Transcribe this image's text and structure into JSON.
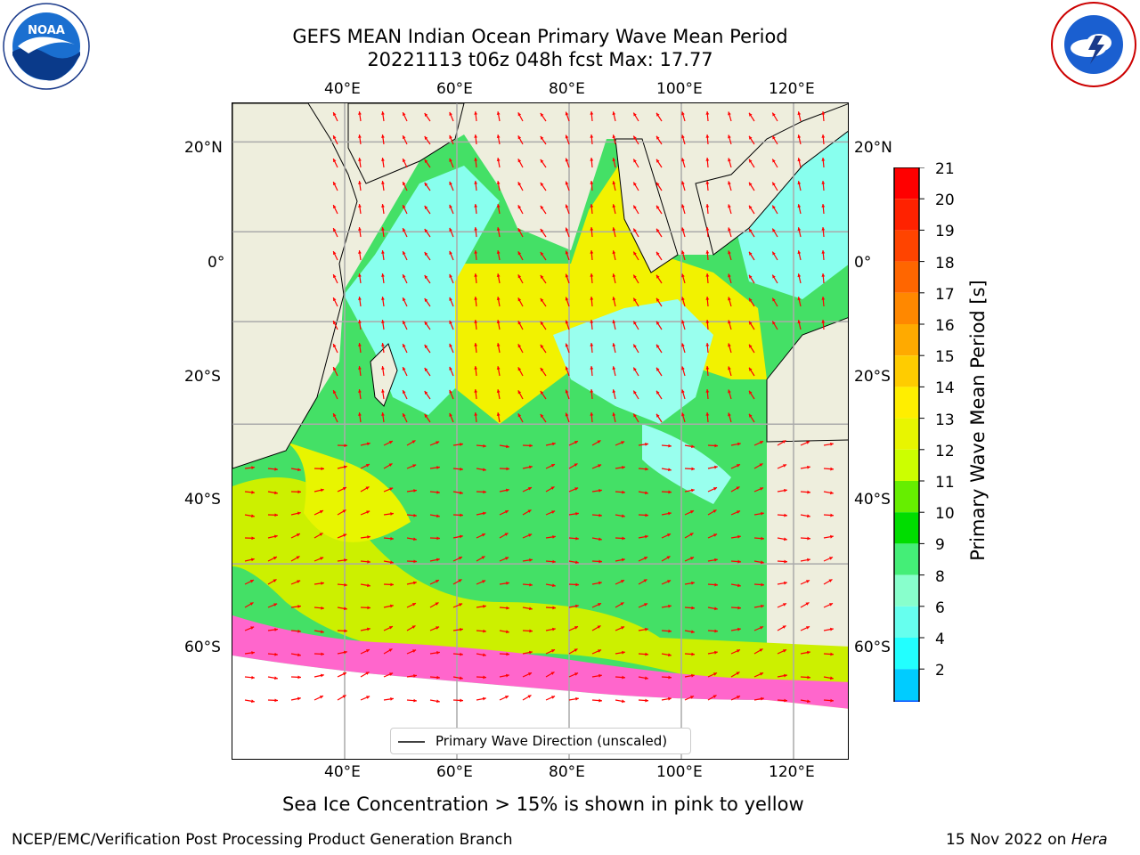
{
  "title": {
    "line1": "GEFS MEAN Indian Ocean Primary Wave Mean Period",
    "line2": "20221113 t06z 048h fcst   Max: 17.77"
  },
  "logos": {
    "left": {
      "name": "noaa-logo",
      "text": "NOAA",
      "ring_text": "NATIONAL OCEANIC AND ATMOSPHERIC ADMINISTRATION · U.S. DEPARTMENT OF COMMERCE"
    },
    "right": {
      "name": "national-weather-service-logo",
      "ring_text": "NATIONAL WEATHER SERVICE"
    }
  },
  "axes": {
    "lon_labels_top": [
      "40°E",
      "60°E",
      "80°E",
      "100°E",
      "120°E"
    ],
    "lon_labels_bottom": [
      "40°E",
      "60°E",
      "80°E",
      "100°E",
      "120°E"
    ],
    "lat_labels_left": [
      "20°N",
      "0°",
      "20°S",
      "40°S",
      "60°S"
    ],
    "lat_labels_right": [
      "20°N",
      "0°",
      "20°S",
      "40°S",
      "60°S"
    ],
    "lon_values": [
      40,
      60,
      80,
      100,
      120
    ],
    "lat_values": [
      20,
      0,
      -20,
      -40,
      -60
    ],
    "lon_range": [
      20,
      130
    ],
    "lat_range": [
      -76,
      28
    ],
    "grid": true
  },
  "colorbar": {
    "label": "Primary Wave Mean Period [s]",
    "ticks": [
      "21",
      "20",
      "19",
      "18",
      "17",
      "16",
      "15",
      "14",
      "13",
      "12",
      "11",
      "10",
      "9",
      "8",
      "6",
      "4",
      "2"
    ],
    "colors": [
      "#ff0000",
      "#ff2200",
      "#ff4400",
      "#ff6600",
      "#ff8800",
      "#ffaa00",
      "#ffcc00",
      "#ffee00",
      "#e8f500",
      "#ccff00",
      "#66ee00",
      "#00dd00",
      "#44ee77",
      "#88ffcc",
      "#66ffee",
      "#22ffff",
      "#00ccff",
      "#0055ff"
    ],
    "extend_color": "#0000ee"
  },
  "legend": {
    "label": "Primary Wave Direction (unscaled)"
  },
  "note": "Sea Ice Concentration > 15% is shown in pink to yellow",
  "footer": {
    "left": "NCEP/EMC/Verification Post Processing Product Generation Branch",
    "right_date": "15 Nov 2022 on ",
    "right_host": "Hera"
  },
  "colors": {
    "land": "#eeeedd",
    "arrow": "#ff0000",
    "sea_ice": "#ff66cc"
  }
}
